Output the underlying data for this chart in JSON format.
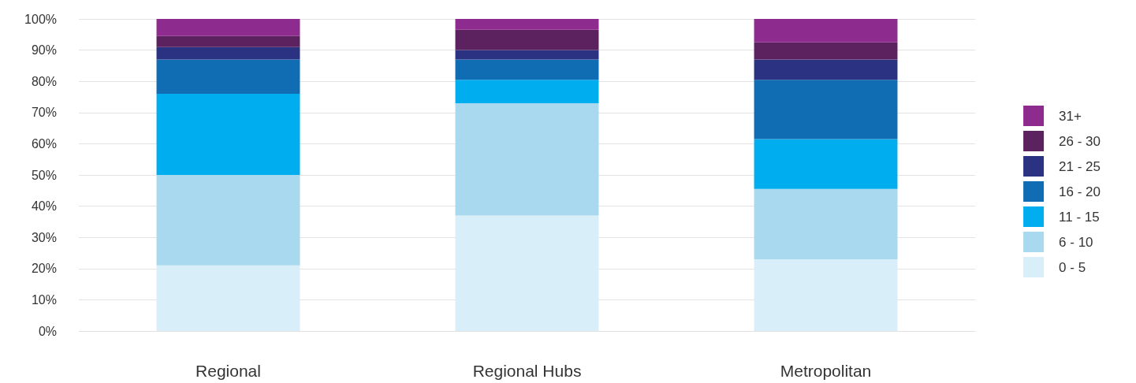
{
  "chart_data": {
    "type": "bar",
    "stacked": true,
    "categories": [
      "Regional",
      "Regional Hubs",
      "Metropolitan"
    ],
    "series": [
      {
        "name": "0 - 5",
        "color": "#d8eef8",
        "values": [
          21,
          37,
          23
        ]
      },
      {
        "name": "6 - 10",
        "color": "#a8d9ee",
        "values": [
          29,
          36,
          22.5
        ]
      },
      {
        "name": "11 - 15",
        "color": "#00aeef",
        "values": [
          26,
          7.5,
          16
        ]
      },
      {
        "name": "16 - 20",
        "color": "#106db3",
        "values": [
          11,
          6.5,
          19
        ]
      },
      {
        "name": "21 - 25",
        "color": "#2b3282",
        "values": [
          4,
          3,
          6.5
        ]
      },
      {
        "name": "26 - 30",
        "color": "#5c2260",
        "values": [
          3.5,
          6.5,
          5.5
        ]
      },
      {
        "name": "31+",
        "color": "#8e2b8e",
        "values": [
          5.5,
          3.5,
          7.5
        ]
      }
    ],
    "ylim": [
      0,
      100
    ],
    "yticks": [
      {
        "value": 0,
        "label": "0%"
      },
      {
        "value": 10,
        "label": "10%"
      },
      {
        "value": 20,
        "label": "20%"
      },
      {
        "value": 30,
        "label": "30%"
      },
      {
        "value": 40,
        "label": "40%"
      },
      {
        "value": 50,
        "label": "50%"
      },
      {
        "value": 60,
        "label": "60%"
      },
      {
        "value": 70,
        "label": "70%"
      },
      {
        "value": 80,
        "label": "80%"
      },
      {
        "value": 90,
        "label": "90%"
      },
      {
        "value": 100,
        "label": "100%"
      }
    ],
    "grid": "y",
    "legend": "right"
  }
}
